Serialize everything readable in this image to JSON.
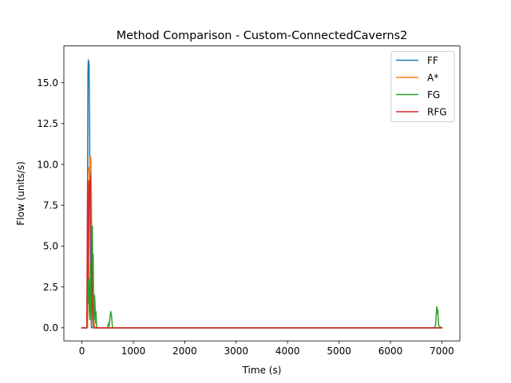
{
  "chart_data": {
    "type": "line",
    "title": "Method Comparison - Custom-ConnectedCaverns2",
    "xlabel": "Time (s)",
    "ylabel": "Flow (units/s)",
    "xlim": [
      -350,
      7350
    ],
    "ylim": [
      -0.8,
      17.25
    ],
    "xticks": [
      0,
      1000,
      2000,
      3000,
      4000,
      5000,
      6000,
      7000
    ],
    "xtick_labels": [
      "0",
      "1000",
      "2000",
      "3000",
      "4000",
      "5000",
      "6000",
      "7000"
    ],
    "yticks": [
      0.0,
      2.5,
      5.0,
      7.5,
      10.0,
      12.5,
      15.0
    ],
    "ytick_labels": [
      "0.0",
      "2.5",
      "5.0",
      "7.5",
      "10.0",
      "12.5",
      "15.0"
    ],
    "grid": false,
    "legend_position": "upper right",
    "series": [
      {
        "name": "FF",
        "color": "#1f77b4",
        "x": [
          0,
          100,
          105,
          112,
          118,
          125,
          132,
          140,
          148,
          155,
          163,
          170,
          178,
          185,
          200,
          7000
        ],
        "y": [
          0,
          0,
          3.0,
          10.0,
          15.5,
          16.4,
          16.3,
          16.1,
          13.0,
          10.0,
          6.0,
          3.0,
          1.0,
          0.2,
          0,
          0
        ]
      },
      {
        "name": "A*",
        "color": "#ff7f0e",
        "x": [
          0,
          110,
          118,
          125,
          135,
          145,
          155,
          165,
          175,
          185,
          195,
          205,
          215,
          230,
          250,
          7000
        ],
        "y": [
          0,
          0,
          4.0,
          9.5,
          9.8,
          9.6,
          10.0,
          10.5,
          10.4,
          8.0,
          5.0,
          3.0,
          1.5,
          0.4,
          0,
          0
        ]
      },
      {
        "name": "FG",
        "color": "#2ca02c",
        "x": [
          0,
          100,
          110,
          118,
          125,
          135,
          145,
          155,
          165,
          175,
          185,
          195,
          205,
          212,
          220,
          228,
          235,
          245,
          255,
          265,
          275,
          285,
          300,
          500,
          520,
          530,
          545,
          560,
          575,
          590,
          600,
          6850,
          6870,
          6880,
          6890,
          6900,
          6910,
          6920,
          6930,
          6940,
          7000
        ],
        "y": [
          0,
          0,
          2.0,
          3.5,
          1.5,
          3.0,
          1.0,
          0.5,
          4.0,
          2.0,
          0,
          3.0,
          6.2,
          2.0,
          4.5,
          1.0,
          0.5,
          2.0,
          1.5,
          0.3,
          1.0,
          0.1,
          0,
          0,
          0.3,
          0.1,
          0.6,
          1.0,
          0.8,
          0.2,
          0,
          0,
          0.1,
          0.3,
          0.8,
          1.3,
          0.9,
          1.1,
          0.4,
          0.1,
          0
        ]
      },
      {
        "name": "RFG",
        "color": "#d62728",
        "x": [
          0,
          95,
          105,
          112,
          120,
          128,
          135,
          145,
          155,
          165,
          172,
          180,
          190,
          200,
          210,
          220,
          230,
          240,
          7000
        ],
        "y": [
          0,
          0,
          5.0,
          9.0,
          6.0,
          3.0,
          7.0,
          9.0,
          8.0,
          9.3,
          7.0,
          5.0,
          3.0,
          1.5,
          0.8,
          0.3,
          0.1,
          0,
          0
        ]
      }
    ]
  }
}
